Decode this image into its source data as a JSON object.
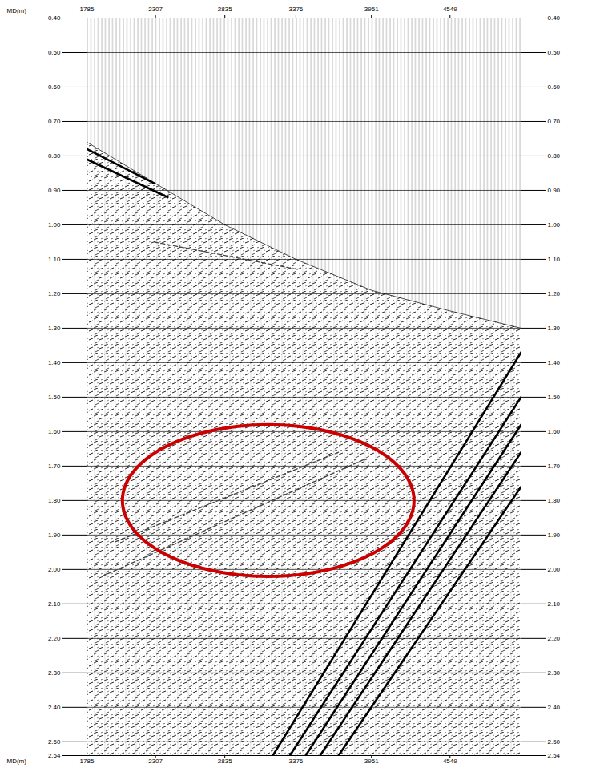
{
  "chart_data": {
    "type": "line",
    "x_label": "MD(m)",
    "xlim": [
      1785,
      5090
    ],
    "xticks": [
      1785,
      2307,
      2835,
      3376,
      3951,
      4549
    ],
    "ylim": [
      0.4,
      2.54
    ],
    "yticks": [
      {
        "value": 0.4,
        "label": "0.40"
      },
      {
        "value": 0.5,
        "label": "0.50"
      },
      {
        "value": 0.6,
        "label": "0.60"
      },
      {
        "value": 0.7,
        "label": "0.70"
      },
      {
        "value": 0.8,
        "label": "0.80"
      },
      {
        "value": 0.9,
        "label": "0.90"
      },
      {
        "value": 1.0,
        "label": "1.00"
      },
      {
        "value": 1.1,
        "label": "1.10"
      },
      {
        "value": 1.2,
        "label": "1.20"
      },
      {
        "value": 1.3,
        "label": "1.30"
      },
      {
        "value": 1.4,
        "label": "1.40"
      },
      {
        "value": 1.5,
        "label": "1.50"
      },
      {
        "value": 1.6,
        "label": "1.60"
      },
      {
        "value": 1.7,
        "label": "1.70"
      },
      {
        "value": 1.8,
        "label": "1.80"
      },
      {
        "value": 1.9,
        "label": "1.90"
      },
      {
        "value": 2.0,
        "label": "2.00"
      },
      {
        "value": 2.1,
        "label": "2.10"
      },
      {
        "value": 2.2,
        "label": "2.20"
      },
      {
        "value": 2.3,
        "label": "2.30"
      },
      {
        "value": 2.4,
        "label": "2.40"
      },
      {
        "value": 2.5,
        "label": "2.50"
      },
      {
        "value": 2.54,
        "label": "2.54"
      }
    ],
    "grid": true,
    "first_arrival": {
      "x": [
        1785,
        2307,
        2835,
        3376,
        3951,
        4549,
        5090
      ],
      "values": [
        0.76,
        0.88,
        1.0,
        1.1,
        1.19,
        1.25,
        1.3
      ],
      "color": "#000000"
    },
    "series": [
      {
        "x": [
          3200,
          5090
        ],
        "values": [
          2.54,
          1.37
        ],
        "color": "#000000",
        "line_style": "solid"
      },
      {
        "x": [
          3330,
          5090
        ],
        "values": [
          2.54,
          1.5
        ],
        "color": "#000000",
        "line_style": "solid"
      },
      {
        "x": [
          3450,
          5090
        ],
        "values": [
          2.54,
          1.58
        ],
        "color": "#000000",
        "line_style": "solid"
      },
      {
        "x": [
          3560,
          5090
        ],
        "values": [
          2.54,
          1.66
        ],
        "color": "#000000",
        "line_style": "solid"
      },
      {
        "x": [
          3700,
          5090
        ],
        "values": [
          2.54,
          1.76
        ],
        "color": "#000000",
        "line_style": "solid"
      },
      {
        "x": [
          1785,
          2300
        ],
        "values": [
          0.78,
          0.88
        ],
        "color": "#000000",
        "line_style": "solid"
      },
      {
        "x": [
          1785,
          2400
        ],
        "values": [
          0.81,
          0.92
        ],
        "color": "#000000",
        "line_style": "solid"
      },
      {
        "x": [
          1900,
          3900
        ],
        "values": [
          2.02,
          1.68
        ],
        "color": "#444444",
        "line_style": "dashed"
      },
      {
        "x": [
          2000,
          3700
        ],
        "values": [
          1.92,
          1.66
        ],
        "color": "#444444",
        "line_style": "dashed"
      },
      {
        "x": [
          2300,
          3400
        ],
        "values": [
          1.05,
          1.13
        ],
        "color": "#444444",
        "line_style": "dashed"
      }
    ],
    "ellipse": {
      "x": 3165,
      "y": 1.8,
      "rx": 1110,
      "ry": 0.22,
      "color": "#cc0000"
    }
  }
}
